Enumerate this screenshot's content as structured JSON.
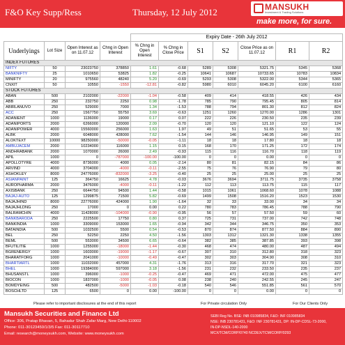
{
  "header": {
    "title": "F&O Key Supp/Ress",
    "date": "Thursday, 12 July 2012",
    "logo_name": "MANSUKH",
    "logo_sub": "Investment & Trading Solutions",
    "logo_tag": "make more, for sure."
  },
  "expiry": "Expiry Date - 26th July 2012",
  "columns": {
    "underlyings": "Underlyings",
    "lot": "Lot Size",
    "oi": "Open Interest as on 11.07.12",
    "chg_oi": "Chng in Open Interest",
    "pct_oi": "% Chng in Open Interest",
    "pct_close": "% Chng in Close Price",
    "s1": "S1",
    "s2": "S2",
    "close": "Close Price as on 11.07.12",
    "r1": "R1",
    "r2": "R2"
  },
  "sections": {
    "index": "INDEX FUTURES",
    "stock": "STOCK FUTURES"
  },
  "index_rows": [
    [
      "NIFTY",
      "50",
      "23023750",
      "378850",
      "1.61",
      "-0.68",
      "5289",
      "5308",
      "5321.75",
      "5345",
      "5368"
    ],
    [
      "BANKNIFTY",
      "25",
      "1010650",
      "53825",
      "1.82",
      "-0.25",
      "10641",
      "10687",
      "10733.65",
      "10783",
      "10834"
    ],
    [
      "MINIFTY",
      "20",
      "975560",
      "48240",
      "5.20",
      "-0.69",
      "5293",
      "5308",
      "5322.00",
      "5344",
      "5365"
    ],
    [
      "CNXIT",
      "50",
      "10550",
      "-1550",
      "-12.81",
      "-0.82",
      "5980",
      "6010",
      "6045.20",
      "6100",
      "6160"
    ]
  ],
  "stock_rows": [
    [
      "ABAN",
      "500",
      "2102000",
      "-22000",
      "-1.04",
      "-0.58",
      "409",
      "414",
      "418.55",
      "426",
      "434"
    ],
    [
      "ABB",
      "250",
      "232750",
      "2250",
      "0.98",
      "-1.78",
      "785",
      "790",
      "795.45",
      "805",
      "814"
    ],
    [
      "ABIRLANUVO",
      "250",
      "529000",
      "7000",
      "1.34",
      "-1.53",
      "788",
      "794",
      "801.30",
      "812",
      "824"
    ],
    [
      "ACC",
      "250",
      "1567750",
      "55750",
      "3.69",
      "-0.63",
      "1251",
      "1260",
      "1270.00",
      "1286",
      "1301"
    ],
    [
      "ADANIENT",
      "1000",
      "1136000",
      "19000",
      "0.17",
      "0.07",
      "222",
      "226",
      "230.50",
      "235",
      "239"
    ],
    [
      "ADANIPORTS",
      "2000",
      "6266000",
      "120000",
      "2.09",
      "-0.70",
      "120",
      "120",
      "121.10",
      "122",
      "124"
    ],
    [
      "ADANIPOWER",
      "4000",
      "15560000",
      "256000",
      "1.63",
      "1.97",
      "49",
      "51",
      "51.65",
      "53",
      "55"
    ],
    [
      "ALBK",
      "2000",
      "6048000",
      "428000",
      "7.62",
      "-1.54",
      "144",
      "146",
      "146.95",
      "149",
      "151"
    ],
    [
      "ALOKTEXT",
      "10000",
      "98250000",
      "-50000",
      "-0.05",
      "-1.11",
      "18",
      "18",
      "17.80",
      "18",
      "18"
    ],
    [
      "AMBUJACEM",
      "2000",
      "10234000",
      "116000",
      "1.15",
      "0.15",
      "168",
      "170",
      "171.25",
      "172",
      "174"
    ],
    [
      "ANDHRABANK",
      "2000",
      "1070000",
      "26000",
      "2.49",
      "-0.93",
      "115",
      "116",
      "116.70",
      "118",
      "119"
    ],
    [
      "APIL",
      "1000",
      "0",
      "-787000",
      "-100.00",
      "-100.00",
      "0",
      "0",
      "0.00",
      "0",
      "0"
    ],
    [
      "APOLLOTYRE",
      "4000",
      "8736000",
      "4000",
      "0.05",
      "-2.14",
      "80",
      "81",
      "82.15",
      "84",
      "86"
    ],
    [
      "ARVIND",
      "4000",
      "3704000",
      "-4000",
      "-0.11",
      "-2.55",
      "75",
      "76",
      "76.90",
      "79",
      "80"
    ],
    [
      "ASHOKLEY",
      "8000",
      "24776000",
      "-832000",
      "-3.25",
      "-0.40",
      "25",
      "25",
      "25.00",
      "25",
      "25"
    ],
    [
      "ASIANPAINT",
      "125",
      "364750",
      "16625",
      "4.78",
      "-0.03",
      "3676",
      "3694",
      "3711.75",
      "3735",
      "3758"
    ],
    [
      "AUROPHARMA",
      "2000",
      "3476000",
      "-4000",
      "-0.11",
      "-1.22",
      "112",
      "113",
      "113.75",
      "115",
      "117"
    ],
    [
      "AXISBANK",
      "250",
      "6644750",
      "94500",
      "1.44",
      "-0.58",
      "1015",
      "1061",
      "1068.60",
      "1078",
      "1088"
    ],
    [
      "BAJAJ-AUTO",
      "125",
      "1299875",
      "71500",
      "5.82",
      "-0.69",
      "1499",
      "1508",
      "1516.20",
      "1523",
      "1530"
    ],
    [
      "BAJAJHIND",
      "8000",
      "22776000",
      "424000",
      "1.90",
      "-1.64",
      "32",
      "33",
      "33.00",
      "34",
      "34"
    ],
    [
      "BAJAJHLDNG",
      "250",
      "17000",
      "0",
      "0.00",
      "0.22",
      "780",
      "783",
      "786.45",
      "788",
      "790"
    ],
    [
      "BALRAMCHIN",
      "4000",
      "11428000",
      "-104000",
      "-0.90",
      "-0.95",
      "56",
      "57",
      "57.50",
      "59",
      "60"
    ],
    [
      "BANKBARODA",
      "250",
      "2225500",
      "17750",
      "0.80",
      "0.37",
      "725",
      "731",
      "737.00",
      "742",
      "748"
    ],
    [
      "BANKINDIA",
      "1000",
      "3309000",
      "153000",
      "1.65",
      "-0.94",
      "342",
      "344",
      "346.75",
      "350",
      "353"
    ],
    [
      "BATAINDIA",
      "500",
      "1032500",
      "5500",
      "0.54",
      "-0.53",
      "870",
      "874",
      "877.50",
      "884",
      "890"
    ],
    [
      "BEL",
      "250",
      "52250",
      "2250",
      "4.50",
      "-1.56",
      "1303",
      "1312",
      "1321.30",
      "1338",
      "1355"
    ],
    [
      "BEML",
      "500",
      "553000",
      "34500",
      "6.65",
      "-0.64",
      "382",
      "385",
      "387.85",
      "393",
      "398"
    ],
    [
      "BFUTILITIE",
      "1000",
      "1255000",
      "-18000",
      "-1.44",
      "-0.30",
      "468",
      "474",
      "480.00",
      "487",
      "494"
    ],
    [
      "BGRENERGY",
      "1000",
      "1603000",
      "-19000",
      "-1.17",
      "-0.67",
      "307",
      "310",
      "312.80",
      "318",
      "323"
    ],
    [
      "BHARATFORG",
      "1000",
      "2041000",
      "-10000",
      "-0.49",
      "-0.47",
      "302",
      "303",
      "304.90",
      "308",
      "310"
    ],
    [
      "BHARTIARTL",
      "1000",
      "11032000",
      "457000",
      "4.31",
      "-1.76",
      "313",
      "316",
      "317.70",
      "321",
      "323"
    ],
    [
      "BHEL",
      "1000",
      "19384000",
      "597000",
      "3.18",
      "-1.56",
      "231",
      "232",
      "233.50",
      "235",
      "237"
    ],
    [
      "BHUSANSTL",
      "1000",
      "396000",
      "-1000",
      "-0.25",
      "-0.47",
      "469",
      "471",
      "472.00",
      "475",
      "477"
    ],
    [
      "BIOCON",
      "1000",
      "1837000",
      "-1000",
      "-0.05",
      "0.08",
      "238",
      "240",
      "242.55",
      "245",
      "247"
    ],
    [
      "BOMDYEING",
      "500",
      "482500",
      "-5000",
      "-1.03",
      "-0.18",
      "540",
      "546",
      "551.85",
      "561",
      "570"
    ],
    [
      "BOSCHLTD",
      "125",
      "6500",
      "0",
      "0.00",
      "-100.00",
      "0",
      "0",
      "0.00",
      "0",
      "0"
    ]
  ],
  "blue_symbols": [
    "NIFTY",
    "BANKNIFTY",
    "ACC",
    "AMBUJACEM",
    "ASIANPAINT",
    "BAJAJ-AUTO",
    "BANKBARODA",
    "BHARTIARTL",
    "BHEL"
  ],
  "disclaimer": {
    "left": "Please refer to important disclosures at the end of this report",
    "mid": "For Private circulation Only",
    "right": "For Our Clients Only"
  },
  "footer": {
    "name": "Mansukh Securities and Finance Ltd",
    "office": "Office: 306, Pratap Bhavan, 5, Bahadur Shah Zafar Marg, New Delhi-110002",
    "phone": "Phone: 011-30123450/1/3/5 Fax: 011-30117710",
    "email": "Email: research@moneysukh.com, Website: www.moneysukh.com",
    "sebi1": "SEBI Reg No. BSE: INB 010985834, F&O: INF 010985834",
    "sebi2": "NSE: INB 230781431, F&O: INF 230781431, DP: IN-DP-CDSL-73-2000,",
    "sebi3": "IN-DP-NSDL-140-2000",
    "sebi4": "MCX/TCM/CORP/0740 NCDEX/TCM/CORP/0293"
  }
}
